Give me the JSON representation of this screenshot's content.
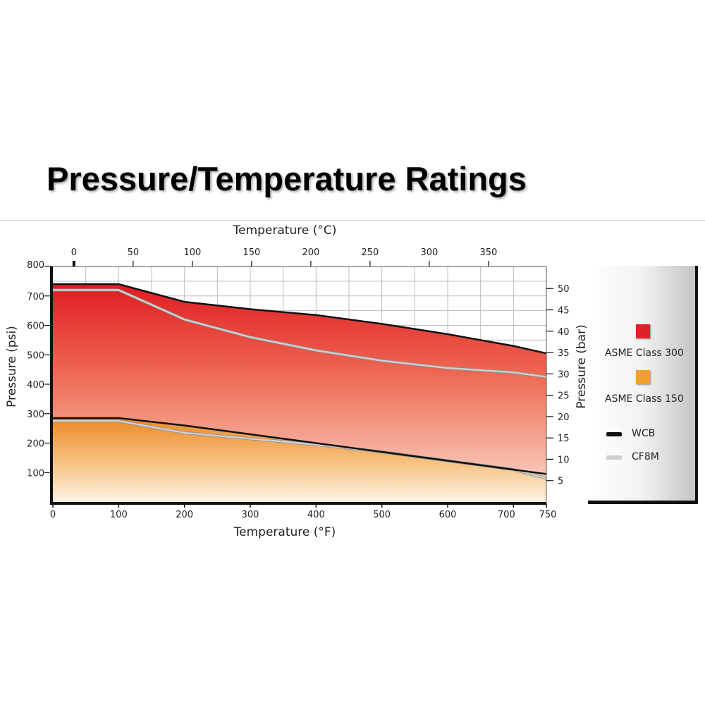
{
  "title": "Pressure/Temperature Ratings",
  "chart_data": {
    "type": "area",
    "x_bottom_label": "Temperature (°F)",
    "x_top_label": "Temperature (°C)",
    "y_left_label": "Pressure (psi)",
    "y_right_label": "Pressure (bar)",
    "x_bottom_range": [
      0,
      750
    ],
    "x_bottom_ticks": [
      0,
      100,
      200,
      300,
      400,
      500,
      600,
      700,
      750
    ],
    "x_top_ticks": [
      0,
      50,
      100,
      150,
      200,
      250,
      300,
      350
    ],
    "y_left_range": [
      0,
      800
    ],
    "y_left_ticks": [
      100,
      200,
      300,
      400,
      500,
      600,
      700,
      800
    ],
    "y_right_ticks": [
      5,
      10,
      15,
      20,
      25,
      30,
      35,
      40,
      45,
      50
    ],
    "grid": true,
    "colors": {
      "class300": "#e0202a",
      "class150": "#f0a030",
      "wcb": "#111111",
      "cf8m": "#cfcfcf"
    },
    "series": [
      {
        "name": "ASME Class 300 WCB",
        "x": [
          0,
          100,
          200,
          300,
          400,
          500,
          600,
          700,
          750
        ],
        "y": [
          740,
          740,
          680,
          655,
          635,
          605,
          570,
          530,
          505
        ]
      },
      {
        "name": "ASME Class 300 CF8M",
        "x": [
          0,
          100,
          200,
          300,
          400,
          500,
          600,
          700,
          750
        ],
        "y": [
          720,
          720,
          620,
          560,
          515,
          480,
          455,
          440,
          425
        ]
      },
      {
        "name": "ASME Class 150 WCB",
        "x": [
          0,
          100,
          200,
          300,
          400,
          500,
          600,
          700,
          750
        ],
        "y": [
          285,
          285,
          260,
          230,
          200,
          170,
          140,
          110,
          95
        ]
      },
      {
        "name": "ASME Class 150 CF8M",
        "x": [
          0,
          100,
          200,
          300,
          400,
          500,
          600,
          700,
          750
        ],
        "y": [
          275,
          275,
          235,
          215,
          195,
          170,
          140,
          110,
          80
        ]
      }
    ],
    "legend": [
      {
        "label": "ASME Class 300",
        "swatch": "#e0202a"
      },
      {
        "label": "ASME Class 150",
        "swatch": "#f0a030"
      },
      {
        "label": "WCB",
        "line": "#111111"
      },
      {
        "label": "CF8M",
        "line": "#cfcfcf"
      }
    ],
    "legend_position": "right"
  }
}
